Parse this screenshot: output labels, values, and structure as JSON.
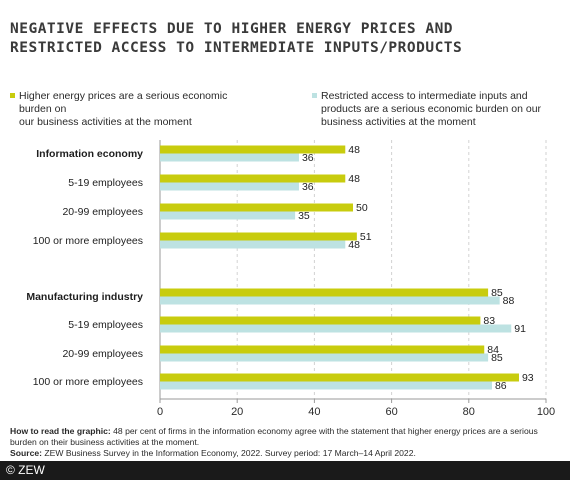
{
  "title_lines": [
    "NEGATIVE EFFECTS DUE TO HIGHER ENERGY PRICES AND",
    "RESTRICTED ACCESS TO INTERMEDIATE INPUTS/PRODUCTS"
  ],
  "colors": {
    "energy": "#c8cc0e",
    "access": "#bde2e2",
    "grid": "#d2d2d2",
    "axis": "#9a9a9a"
  },
  "legend": [
    {
      "lines": [
        "Higher energy prices are a serious economic burden on",
        "our business activities at the moment"
      ]
    },
    {
      "lines": [
        "Restricted access to intermediate inputs and",
        "products are a serious economic burden on our",
        "business activities at the moment"
      ]
    }
  ],
  "chart_data": {
    "type": "bar",
    "orientation": "horizontal",
    "xlim": [
      0,
      100
    ],
    "x_ticks": [
      "0",
      "20",
      "40",
      "60",
      "80",
      "100"
    ],
    "grid": true,
    "legend_position": "top",
    "categories": [
      {
        "label": "Information economy",
        "bold": true
      },
      {
        "label": "5-19 employees",
        "bold": false
      },
      {
        "label": "20-99 employees",
        "bold": false
      },
      {
        "label": "100 or more employees",
        "bold": false
      },
      {
        "label": "Manufacturing industry",
        "bold": true
      },
      {
        "label": "5-19 employees",
        "bold": false
      },
      {
        "label": "20-99 employees",
        "bold": false
      },
      {
        "label": "100 or more employees",
        "bold": false
      }
    ],
    "series": [
      {
        "values": [
          48,
          48,
          50,
          51,
          85,
          83,
          84,
          93
        ]
      },
      {
        "values": [
          36,
          36,
          35,
          48,
          88,
          91,
          85,
          86
        ]
      }
    ]
  },
  "footnote": {
    "read_label": "How to read the graphic:",
    "read_text": " 48 per cent of firms in the information economy agree with the statement that higher energy prices are a serious burden on their business activities at the moment.",
    "source_label": "Source:",
    "source_text": " ZEW Business Survey in the Information Economy, 2022. Survey period: 17 March–14 April 2022."
  },
  "copyright": "© ZEW"
}
